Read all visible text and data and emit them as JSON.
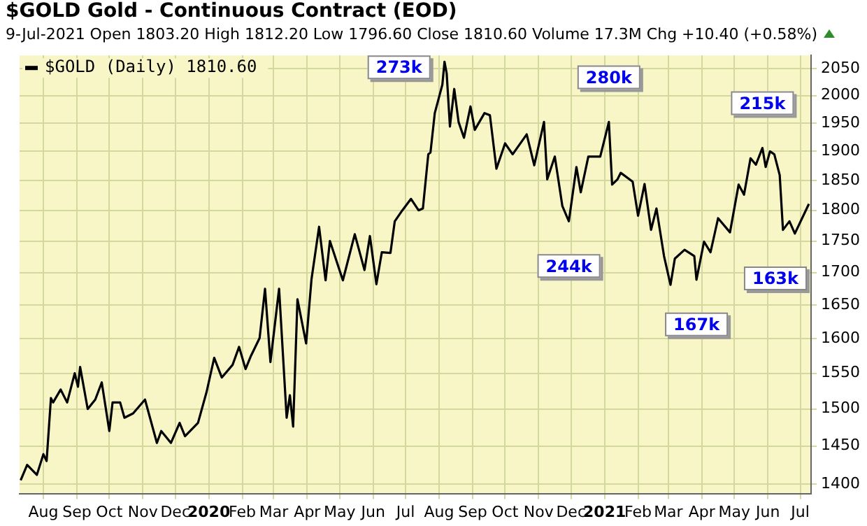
{
  "chart_data": {
    "type": "line",
    "title": "$GOLD Gold - Continuous Contract (EOD)",
    "subtitle": "9-Jul-2021 Open 1803.20 High 1812.20 Low 1796.60 Close 1810.60 Volume 17.3M Chg +10.40 (+0.58%)",
    "series": [
      {
        "name": "$GOLD (Daily) 1810.60",
        "color": "#000000",
        "x": [
          "2019-07-11",
          "2019-07-17",
          "2019-07-26",
          "2019-08-01",
          "2019-08-04",
          "2019-08-08",
          "2019-08-10",
          "2019-08-17",
          "2019-08-23",
          "2019-08-30",
          "2019-09-02",
          "2019-09-04",
          "2019-09-11",
          "2019-09-18",
          "2019-09-24",
          "2019-10-01",
          "2019-10-04",
          "2019-10-11",
          "2019-10-15",
          "2019-10-23",
          "2019-11-03",
          "2019-11-14",
          "2019-11-18",
          "2019-11-27",
          "2019-12-05",
          "2019-12-10",
          "2019-12-22",
          "2019-12-30",
          "2020-01-06",
          "2020-01-13",
          "2020-01-23",
          "2020-01-29",
          "2020-02-04",
          "2020-02-09",
          "2020-02-17",
          "2020-02-22",
          "2020-02-27",
          "2020-03-06",
          "2020-03-13",
          "2020-03-16",
          "2020-03-19",
          "2020-03-23",
          "2020-03-31",
          "2020-04-05",
          "2020-04-12",
          "2020-04-18",
          "2020-04-22",
          "2020-05-04",
          "2020-05-15",
          "2020-05-24",
          "2020-05-29",
          "2020-06-04",
          "2020-06-09",
          "2020-06-17",
          "2020-06-21",
          "2020-06-28",
          "2020-07-06",
          "2020-07-13",
          "2020-07-17",
          "2020-07-22",
          "2020-07-24",
          "2020-07-28",
          "2020-08-04",
          "2020-08-06",
          "2020-08-08",
          "2020-08-11",
          "2020-08-15",
          "2020-08-19",
          "2020-08-24",
          "2020-08-30",
          "2020-09-03",
          "2020-09-12",
          "2020-09-17",
          "2020-09-23",
          "2020-10-01",
          "2020-10-08",
          "2020-10-21",
          "2020-10-28",
          "2020-11-06",
          "2020-11-09",
          "2020-11-16",
          "2020-11-23",
          "2020-11-29",
          "2020-12-06",
          "2020-12-10",
          "2020-12-17",
          "2020-12-28",
          "2021-01-05",
          "2021-01-08",
          "2021-01-13",
          "2021-01-16",
          "2021-01-27",
          "2021-02-01",
          "2021-02-07",
          "2021-02-13",
          "2021-02-18",
          "2021-02-25",
          "2021-03-03",
          "2021-03-07",
          "2021-03-16",
          "2021-03-25",
          "2021-03-27",
          "2021-04-03",
          "2021-04-09",
          "2021-04-16",
          "2021-04-27",
          "2021-05-05",
          "2021-05-10",
          "2021-05-16",
          "2021-05-21",
          "2021-05-27",
          "2021-05-30",
          "2021-06-03",
          "2021-06-07",
          "2021-06-12",
          "2021-06-15",
          "2021-06-21",
          "2021-06-26",
          "2021-07-09"
        ],
        "values": [
          1405,
          1425,
          1412,
          1439,
          1430,
          1515,
          1509,
          1527,
          1509,
          1550,
          1531,
          1559,
          1500,
          1513,
          1537,
          1470,
          1509,
          1509,
          1488,
          1494,
          1513,
          1454,
          1470,
          1454,
          1481,
          1463,
          1481,
          1524,
          1572,
          1544,
          1562,
          1588,
          1556,
          1575,
          1601,
          1675,
          1566,
          1675,
          1488,
          1519,
          1476,
          1659,
          1593,
          1690,
          1773,
          1688,
          1750,
          1688,
          1761,
          1704,
          1758,
          1682,
          1732,
          1731,
          1782,
          1800,
          1819,
          1800,
          1803,
          1895,
          1898,
          1968,
          2020,
          2063,
          2041,
          1944,
          2012,
          1952,
          1924,
          1980,
          1938,
          1968,
          1964,
          1870,
          1914,
          1895,
          1930,
          1876,
          1952,
          1852,
          1891,
          1807,
          1782,
          1873,
          1830,
          1891,
          1891,
          1952,
          1843,
          1852,
          1863,
          1848,
          1791,
          1844,
          1768,
          1803,
          1726,
          1681,
          1722,
          1736,
          1726,
          1689,
          1749,
          1732,
          1787,
          1764,
          1843,
          1826,
          1888,
          1877,
          1906,
          1873,
          1900,
          1895,
          1859,
          1768,
          1782,
          1762,
          1810.6
        ]
      }
    ],
    "xlim": [
      "2019-07-10",
      "2021-07-11"
    ],
    "xticks": [
      {
        "value": "2019-08-01",
        "label": "Aug"
      },
      {
        "value": "2019-09-01",
        "label": "Sep"
      },
      {
        "value": "2019-10-01",
        "label": "Oct"
      },
      {
        "value": "2019-11-01",
        "label": "Nov"
      },
      {
        "value": "2019-12-01",
        "label": "Dec"
      },
      {
        "value": "2020-01-01",
        "label": "2020"
      },
      {
        "value": "2020-02-01",
        "label": "Feb"
      },
      {
        "value": "2020-03-01",
        "label": "Mar"
      },
      {
        "value": "2020-04-01",
        "label": "Apr"
      },
      {
        "value": "2020-05-01",
        "label": "May"
      },
      {
        "value": "2020-06-01",
        "label": "Jun"
      },
      {
        "value": "2020-07-01",
        "label": "Jul"
      },
      {
        "value": "2020-08-01",
        "label": "Aug"
      },
      {
        "value": "2020-09-01",
        "label": "Sep"
      },
      {
        "value": "2020-10-01",
        "label": "Oct"
      },
      {
        "value": "2020-11-01",
        "label": "Nov"
      },
      {
        "value": "2020-12-01",
        "label": "Dec"
      },
      {
        "value": "2021-01-01",
        "label": "2021"
      },
      {
        "value": "2021-02-01",
        "label": "Feb"
      },
      {
        "value": "2021-03-01",
        "label": "Mar"
      },
      {
        "value": "2021-04-01",
        "label": "Apr"
      },
      {
        "value": "2021-05-01",
        "label": "May"
      },
      {
        "value": "2021-06-01",
        "label": "Jun"
      },
      {
        "value": "2021-07-01",
        "label": "Jul"
      }
    ],
    "ylim": [
      1388,
      2075
    ],
    "yticks": [
      1400,
      1450,
      1500,
      1550,
      1600,
      1650,
      1700,
      1750,
      1800,
      1850,
      1900,
      1950,
      2000,
      2050
    ],
    "log": true,
    "grid": true,
    "legend": "top left",
    "marker": "none",
    "line_style": "solid",
    "annotations": [
      {
        "text": "273k",
        "x": "2020-08-06",
        "y": 2063
      },
      {
        "text": "280k",
        "x": "2021-01-05",
        "y": 1952
      },
      {
        "text": "244k",
        "x": "2020-11-29",
        "y": 1782
      },
      {
        "text": "167k",
        "x": "2021-03-27",
        "y": 1689
      },
      {
        "text": "215k",
        "x": "2021-05-27",
        "y": 1906
      },
      {
        "text": "163k",
        "x": "2021-06-26",
        "y": 1762
      }
    ]
  }
}
